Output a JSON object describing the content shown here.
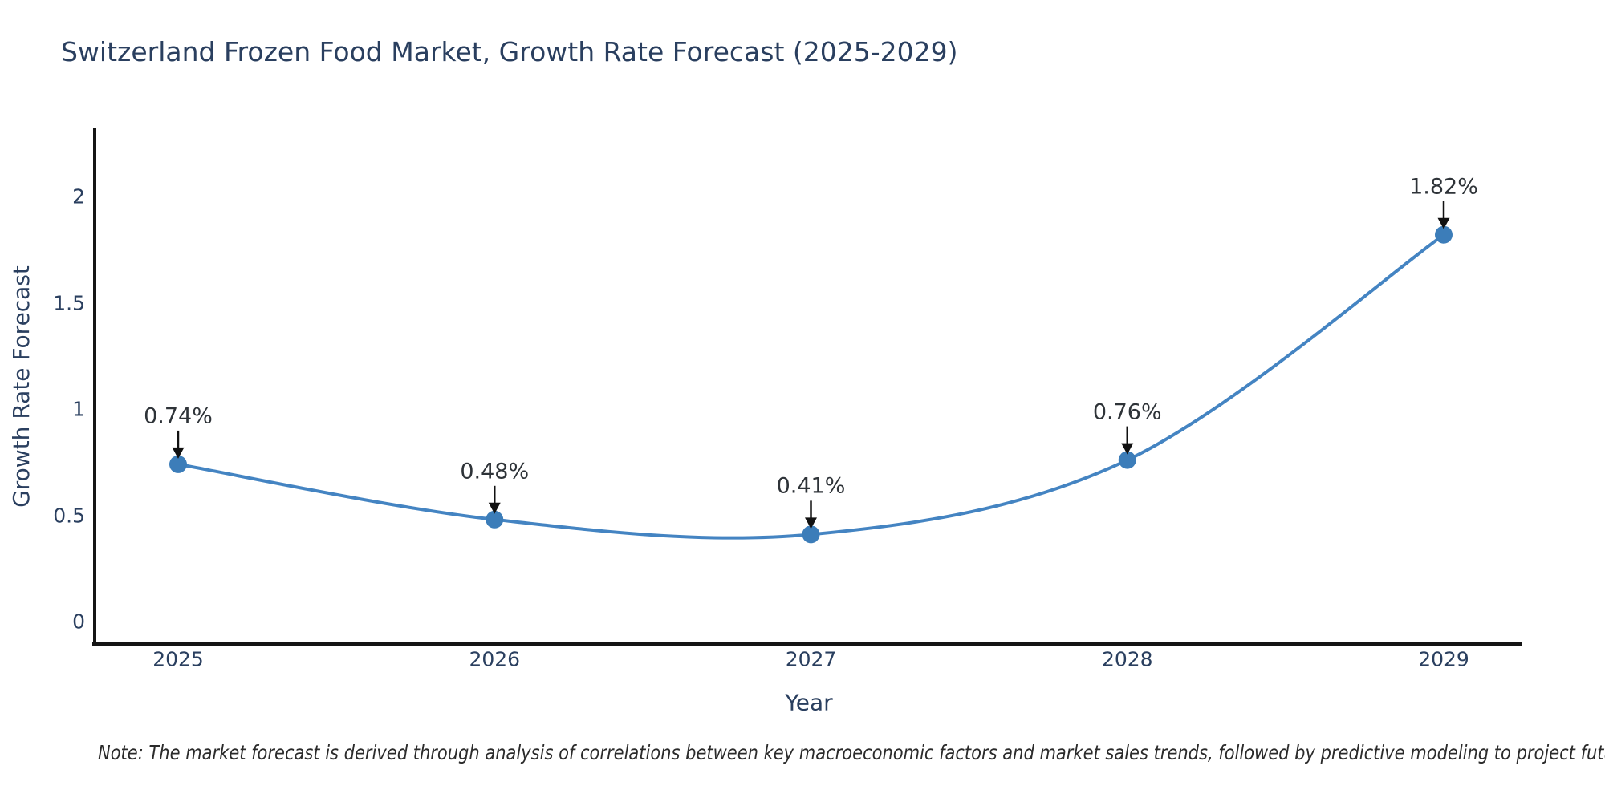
{
  "title": "Switzerland Frozen Food Market, Growth Rate Forecast (2025-2029)",
  "footnote": "Note: The market forecast is derived through analysis of correlations between key macroeconomic factors and market sales trends, followed by predictive modeling to project future sales",
  "chart_data": {
    "type": "line",
    "line_shape": "spline",
    "markers": true,
    "grid": false,
    "legend": "none",
    "title": "Switzerland Frozen Food Market, Growth Rate Forecast (2025-2029)",
    "xlabel": "Year",
    "ylabel": "Growth Rate Forecast",
    "x": [
      2025,
      2026,
      2027,
      2028,
      2029
    ],
    "categories": [
      "2025",
      "2026",
      "2027",
      "2028",
      "2029"
    ],
    "series": [
      {
        "name": "Growth Rate Forecast (%)",
        "values": [
          0.74,
          0.48,
          0.41,
          0.76,
          1.82
        ]
      }
    ],
    "point_labels": [
      "0.74%",
      "0.48%",
      "0.41%",
      "0.76%",
      "1.82%"
    ],
    "yticks": [
      0,
      0.5,
      1,
      1.5,
      2
    ],
    "ytick_labels": [
      "0",
      "0.5",
      "1",
      "1.5",
      "2"
    ],
    "ylim": [
      -0.11,
      2.32
    ],
    "xlim": [
      2024.73,
      2029.25
    ],
    "colors": {
      "line": "#4484c2",
      "marker": "#3c7db9",
      "axis": "#151515",
      "arrow": "#111111",
      "text": "#2a3f5f"
    }
  }
}
